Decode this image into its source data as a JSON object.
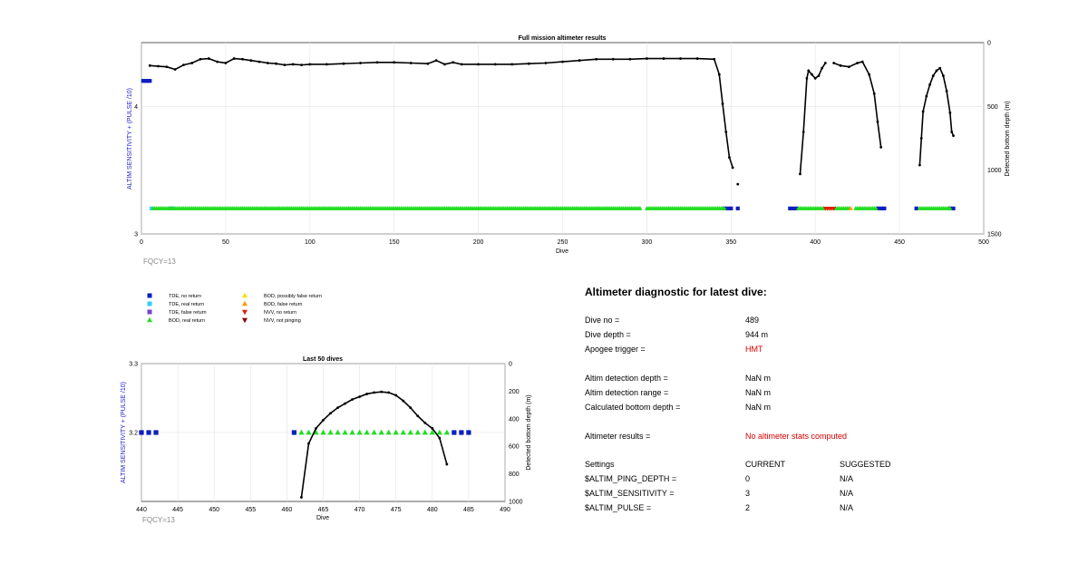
{
  "top_chart": {
    "title": "Full mission altimeter results",
    "xlabel": "Dive",
    "ylabel_left": "ALTIM SENSITIVITY + (PULSE /10)",
    "ylabel_right": "Detected bottom depth (m)",
    "fqcy": "FQCY=13",
    "xticks": [
      "0",
      "50",
      "100",
      "150",
      "200",
      "250",
      "300",
      "350",
      "400",
      "450",
      "500"
    ],
    "yticks_left": [
      "3",
      "4"
    ],
    "yticks_right": [
      "0",
      "500",
      "1000",
      "1500"
    ]
  },
  "bottom_chart": {
    "title": "Last 50 dives",
    "xlabel": "Dive",
    "ylabel_left": "ALTIM SENSITIVITY + (PULSE /10)",
    "ylabel_right": "Detected bottom depth (m)",
    "fqcy": "FQCY=13",
    "xticks": [
      "440",
      "445",
      "450",
      "455",
      "460",
      "465",
      "470",
      "475",
      "480",
      "485",
      "490"
    ],
    "yticks_left": [
      "3.2",
      "3.3"
    ],
    "yticks_right": [
      "0",
      "200",
      "400",
      "600",
      "800",
      "1000"
    ]
  },
  "legend": [
    {
      "label": "TDE, no return",
      "color": "#0a1fbf",
      "marker": "square"
    },
    {
      "label": "TDE, real return",
      "color": "#33ccff",
      "marker": "square"
    },
    {
      "label": "TDE, false return",
      "color": "#7744cc",
      "marker": "square"
    },
    {
      "label": "BOD, real return",
      "color": "#22dd22",
      "marker": "triangle-up"
    },
    {
      "label": "BOD, possibly false return",
      "color": "#ffdd00",
      "marker": "triangle-up"
    },
    {
      "label": "BOD, false return",
      "color": "#ff9900",
      "marker": "triangle-up"
    },
    {
      "label": "NVV, no return",
      "color": "#dd2200",
      "marker": "triangle-down"
    },
    {
      "label": "NVV, not pinging",
      "color": "#880000",
      "marker": "triangle-down"
    }
  ],
  "diagnostic": {
    "title": "Altimeter diagnostic for latest dive:",
    "rows": [
      {
        "label": "Dive no =",
        "value": "489"
      },
      {
        "label": "Dive depth =",
        "value": "944 m"
      },
      {
        "label": "Apogee trigger =",
        "value": "HMT",
        "red": true
      },
      {
        "label": "Altim detection depth =",
        "value": "NaN m"
      },
      {
        "label": "Altim detection range =",
        "value": "NaN m"
      },
      {
        "label": "Calculated bottom depth =",
        "value": "NaN m"
      },
      {
        "label": "Altimeter results =",
        "value": "No altimeter stats computed",
        "red": true
      }
    ],
    "settings_header": {
      "label": "Settings",
      "current": "CURRENT",
      "suggested": "SUGGESTED"
    },
    "settings": [
      {
        "label": "$ALTIM_PING_DEPTH =",
        "current": "0",
        "suggested": "N/A"
      },
      {
        "label": "$ALTIM_SENSITIVITY =",
        "current": "3",
        "suggested": "N/A"
      },
      {
        "label": "$ALTIM_PULSE =",
        "current": "2",
        "suggested": "N/A"
      }
    ]
  },
  "chart_data": [
    {
      "type": "scatter",
      "title": "Full mission altimeter results",
      "xlabel": "Dive",
      "ylabel": "ALTIM SENSITIVITY + (PULSE /10)",
      "ylabel_right": "Detected bottom depth (m)",
      "xlim": [
        0,
        500
      ],
      "ylim": [
        3,
        4.5
      ],
      "ylim_right": [
        1500,
        0
      ],
      "grid": true,
      "series": [
        {
          "name": "TDE, no return",
          "color": "#0a1fbf",
          "marker": "square",
          "x": [
            1,
            2,
            3,
            4,
            5
          ],
          "y": [
            4.2,
            4.2,
            4.2,
            4.2,
            4.2
          ]
        },
        {
          "name": "TDE, no return",
          "color": "#0a1fbf",
          "marker": "square",
          "x": [
            346,
            348,
            350,
            354,
            385,
            387,
            389,
            437,
            439,
            441,
            460,
            480,
            482
          ],
          "y": [
            3.2,
            3.2,
            3.2,
            3.2,
            3.2,
            3.2,
            3.2,
            3.2,
            3.2,
            3.2,
            3.2,
            3.2,
            3.2
          ]
        },
        {
          "name": "TDE, real return",
          "color": "#33ccff",
          "marker": "square",
          "x": [
            6,
            17,
            18,
            19
          ],
          "y": [
            3.2,
            3.2,
            3.2,
            3.2
          ]
        },
        {
          "name": "BOD, real return",
          "color": "#22dd22",
          "marker": "triangle-up",
          "x_ranges": [
            [
              7,
              296
            ],
            [
              300,
              346
            ],
            [
              390,
              405
            ],
            [
              412,
              420
            ],
            [
              424,
              436
            ],
            [
              462,
              480
            ]
          ],
          "y": 3.2
        },
        {
          "name": "NVV, no return",
          "color": "#dd2200",
          "marker": "triangle-down",
          "x": [
            406,
            407,
            408,
            409,
            410,
            411
          ],
          "y": [
            3.2,
            3.2,
            3.2,
            3.2,
            3.2,
            3.2
          ]
        },
        {
          "name": "BOD, false return",
          "color": "#ff9900",
          "marker": "triangle-up",
          "x": [
            421
          ],
          "y": [
            3.2
          ]
        },
        {
          "name": "Detected bottom depth",
          "color": "#000000",
          "axis": "right",
          "segments": [
            {
              "x": [
                5,
                10,
                15,
                20,
                25,
                30,
                35,
                40,
                45,
                50,
                55,
                60,
                65,
                70,
                75,
                80,
                85,
                90,
                95,
                100,
                110,
                120,
                130,
                140,
                150,
                160,
                170,
                175,
                180,
                185,
                190,
                200,
                210,
                220,
                230,
                240,
                250,
                260,
                270,
                280,
                290,
                300,
                310,
                320,
                330,
                340,
                343,
                345,
                347,
                349,
                351
              ],
              "depth": [
                180,
                185,
                190,
                210,
                175,
                160,
                130,
                125,
                150,
                160,
                125,
                130,
                140,
                150,
                160,
                165,
                175,
                170,
                175,
                170,
                170,
                165,
                160,
                155,
                155,
                160,
                165,
                140,
                170,
                155,
                170,
                170,
                170,
                170,
                165,
                160,
                150,
                140,
                130,
                130,
                130,
                125,
                125,
                125,
                125,
                130,
                250,
                480,
                700,
                900,
                980
              ]
            },
            {
              "x": [
                354
              ],
              "depth": [
                1110
              ]
            },
            {
              "x": [
                391,
                393,
                395,
                396,
                398,
                400,
                402,
                404,
                406
              ],
              "depth": [
                1030,
                700,
                280,
                220,
                250,
                280,
                260,
                200,
                160
              ]
            },
            {
              "x": [
                411,
                415,
                420,
                425,
                428,
                432,
                435,
                437,
                439
              ],
              "depth": [
                160,
                180,
                190,
                160,
                150,
                250,
                400,
                620,
                820
              ]
            },
            {
              "x": [
                462,
                463,
                464,
                466,
                468,
                470,
                472,
                474,
                476,
                478,
                480,
                481,
                482
              ],
              "depth": [
                960,
                750,
                540,
                420,
                330,
                260,
                220,
                200,
                260,
                380,
                550,
                700,
                730
              ]
            }
          ]
        }
      ]
    },
    {
      "type": "scatter",
      "title": "Last 50 dives",
      "xlabel": "Dive",
      "ylabel": "ALTIM SENSITIVITY + (PULSE /10)",
      "ylabel_right": "Detected bottom depth (m)",
      "xlim": [
        440,
        490
      ],
      "ylim": [
        3.1,
        3.3
      ],
      "ylim_right": [
        1000,
        0
      ],
      "grid": true,
      "series": [
        {
          "name": "TDE, no return",
          "color": "#0a1fbf",
          "marker": "square",
          "x": [
            440,
            441,
            442,
            461,
            483,
            484,
            485
          ],
          "y": [
            3.2,
            3.2,
            3.2,
            3.2,
            3.2,
            3.2,
            3.2
          ]
        },
        {
          "name": "BOD, real return",
          "color": "#22dd22",
          "marker": "triangle-up",
          "x": [
            462,
            463,
            464,
            465,
            466,
            467,
            468,
            469,
            470,
            471,
            472,
            473,
            474,
            475,
            476,
            477,
            478,
            479,
            480,
            481,
            482
          ],
          "y": [
            3.2,
            3.2,
            3.2,
            3.2,
            3.2,
            3.2,
            3.2,
            3.2,
            3.2,
            3.2,
            3.2,
            3.2,
            3.2,
            3.2,
            3.2,
            3.2,
            3.2,
            3.2,
            3.2,
            3.2,
            3.2
          ]
        },
        {
          "name": "Detected bottom depth",
          "color": "#000000",
          "axis": "right",
          "x": [
            462,
            463,
            464,
            465,
            466,
            467,
            468,
            469,
            470,
            471,
            472,
            473,
            474,
            475,
            476,
            477,
            478,
            479,
            480,
            481,
            482
          ],
          "depth": [
            970,
            580,
            470,
            410,
            360,
            320,
            290,
            260,
            240,
            220,
            210,
            205,
            210,
            230,
            270,
            320,
            380,
            430,
            470,
            540,
            730
          ]
        }
      ]
    }
  ]
}
